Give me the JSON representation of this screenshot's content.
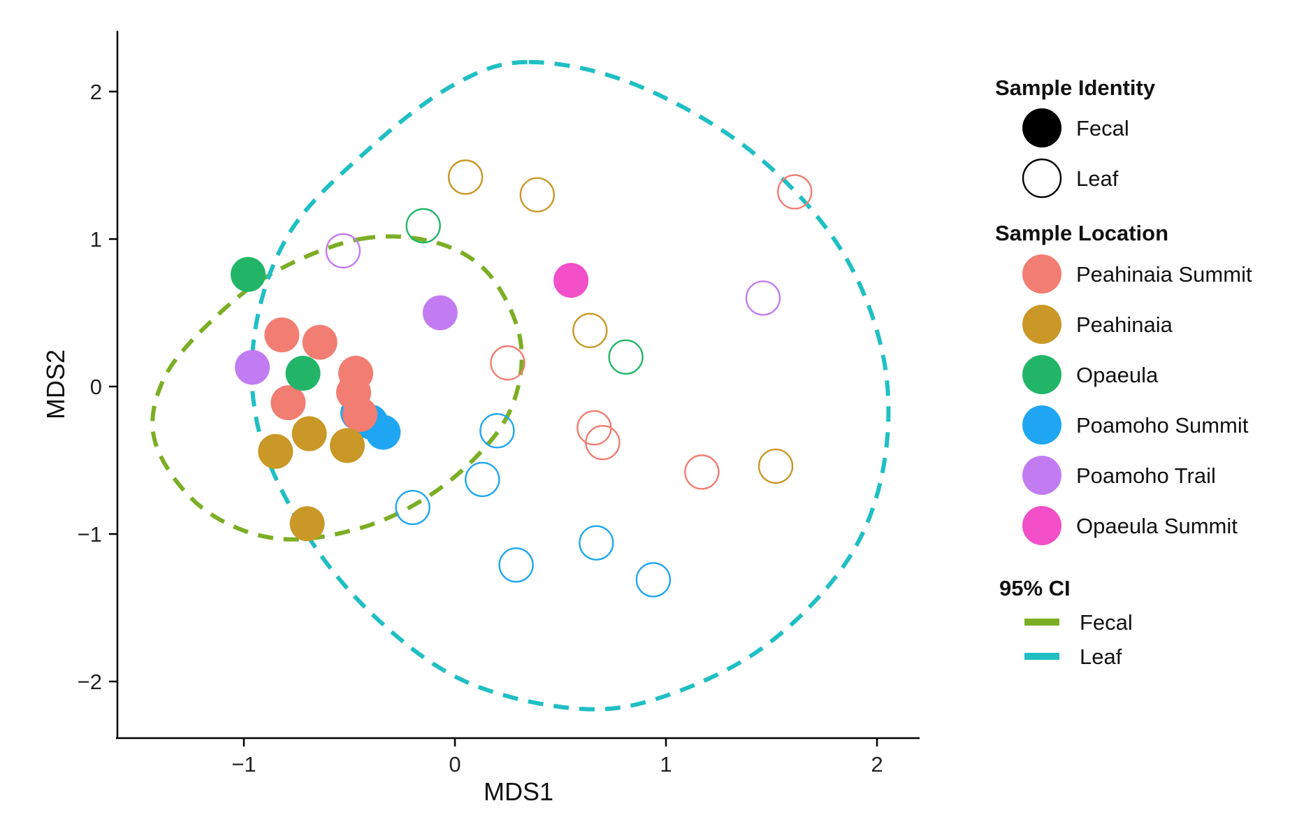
{
  "chart_data": {
    "type": "scatter",
    "xlabel": "MDS1",
    "ylabel": "MDS2",
    "xlim": [
      -1.6,
      2.2
    ],
    "ylim": [
      -2.4,
      2.4
    ],
    "x_ticks": [
      {
        "value": -1,
        "label": "−1"
      },
      {
        "value": 0,
        "label": "0"
      },
      {
        "value": 1,
        "label": "1"
      },
      {
        "value": 2,
        "label": "2"
      }
    ],
    "y_ticks": [
      {
        "value": 2,
        "label": "2"
      },
      {
        "value": 1,
        "label": "1"
      },
      {
        "value": 0,
        "label": "0"
      },
      {
        "value": -1,
        "label": "−1"
      },
      {
        "value": -2,
        "label": "−2"
      }
    ],
    "grid": false,
    "legend_placement": "right",
    "colors": {
      "Peahinaia Summit": "#F27D72",
      "Peahinaia": "#C99827",
      "Opaeula": "#22B568",
      "Poamoho Summit": "#1FA6F2",
      "Poamoho Trail": "#C27CF2",
      "Opaeula Summit": "#F24FC8",
      "ci_fecal": "#7CAE25",
      "ci_leaf": "#1FBFC4"
    },
    "points": [
      {
        "x": -0.98,
        "y": 0.76,
        "location": "Opaeula",
        "identity": "Fecal"
      },
      {
        "x": -0.96,
        "y": 0.13,
        "location": "Poamoho Trail",
        "identity": "Fecal"
      },
      {
        "x": -0.07,
        "y": 0.5,
        "location": "Poamoho Trail",
        "identity": "Fecal"
      },
      {
        "x": 0.55,
        "y": 0.72,
        "location": "Opaeula Summit",
        "identity": "Fecal"
      },
      {
        "x": -0.46,
        "y": -0.18,
        "location": "Poamoho Summit",
        "identity": "Fecal"
      },
      {
        "x": -0.4,
        "y": -0.24,
        "location": "Poamoho Summit",
        "identity": "Fecal"
      },
      {
        "x": -0.34,
        "y": -0.31,
        "location": "Poamoho Summit",
        "identity": "Fecal"
      },
      {
        "x": -0.82,
        "y": 0.35,
        "location": "Peahinaia Summit",
        "identity": "Fecal"
      },
      {
        "x": -0.64,
        "y": 0.3,
        "location": "Peahinaia Summit",
        "identity": "Fecal"
      },
      {
        "x": -0.47,
        "y": 0.09,
        "location": "Peahinaia Summit",
        "identity": "Fecal"
      },
      {
        "x": -0.48,
        "y": -0.04,
        "location": "Peahinaia Summit",
        "identity": "Fecal"
      },
      {
        "x": -0.45,
        "y": -0.19,
        "location": "Peahinaia Summit",
        "identity": "Fecal"
      },
      {
        "x": -0.79,
        "y": -0.11,
        "location": "Peahinaia Summit",
        "identity": "Fecal"
      },
      {
        "x": -0.72,
        "y": 0.09,
        "location": "Opaeula",
        "identity": "Fecal"
      },
      {
        "x": -0.69,
        "y": -0.32,
        "location": "Peahinaia",
        "identity": "Fecal"
      },
      {
        "x": -0.85,
        "y": -0.44,
        "location": "Peahinaia",
        "identity": "Fecal"
      },
      {
        "x": -0.51,
        "y": -0.4,
        "location": "Peahinaia",
        "identity": "Fecal"
      },
      {
        "x": -0.7,
        "y": -0.93,
        "location": "Peahinaia",
        "identity": "Fecal"
      },
      {
        "x": -0.53,
        "y": 0.92,
        "location": "Poamoho Trail",
        "identity": "Leaf"
      },
      {
        "x": -0.15,
        "y": 1.09,
        "location": "Opaeula",
        "identity": "Leaf"
      },
      {
        "x": 0.05,
        "y": 1.42,
        "location": "Peahinaia",
        "identity": "Leaf"
      },
      {
        "x": 0.39,
        "y": 1.3,
        "location": "Peahinaia",
        "identity": "Leaf"
      },
      {
        "x": 1.61,
        "y": 1.32,
        "location": "Peahinaia Summit",
        "identity": "Leaf"
      },
      {
        "x": 1.46,
        "y": 0.6,
        "location": "Poamoho Trail",
        "identity": "Leaf"
      },
      {
        "x": 0.64,
        "y": 0.38,
        "location": "Peahinaia",
        "identity": "Leaf"
      },
      {
        "x": 0.81,
        "y": 0.2,
        "location": "Opaeula",
        "identity": "Leaf"
      },
      {
        "x": 0.25,
        "y": 0.16,
        "location": "Peahinaia Summit",
        "identity": "Leaf"
      },
      {
        "x": 0.2,
        "y": -0.3,
        "location": "Poamoho Summit",
        "identity": "Leaf"
      },
      {
        "x": 0.66,
        "y": -0.28,
        "location": "Peahinaia Summit",
        "identity": "Leaf"
      },
      {
        "x": 0.7,
        "y": -0.38,
        "location": "Peahinaia Summit",
        "identity": "Leaf"
      },
      {
        "x": 1.17,
        "y": -0.58,
        "location": "Peahinaia Summit",
        "identity": "Leaf"
      },
      {
        "x": 1.52,
        "y": -0.54,
        "location": "Peahinaia",
        "identity": "Leaf"
      },
      {
        "x": 0.13,
        "y": -0.63,
        "location": "Poamoho Summit",
        "identity": "Leaf"
      },
      {
        "x": -0.2,
        "y": -0.82,
        "location": "Poamoho Summit",
        "identity": "Leaf"
      },
      {
        "x": 0.67,
        "y": -1.06,
        "location": "Poamoho Summit",
        "identity": "Leaf"
      },
      {
        "x": 0.29,
        "y": -1.21,
        "location": "Poamoho Summit",
        "identity": "Leaf"
      },
      {
        "x": 0.94,
        "y": -1.31,
        "location": "Poamoho Summit",
        "identity": "Leaf"
      }
    ],
    "ci_ellipses": [
      {
        "name": "Fecal",
        "color_key": "ci_fecal",
        "path": [
          [
            -0.45,
            1.0
          ],
          [
            -0.1,
            0.98
          ],
          [
            0.15,
            0.78
          ],
          [
            0.3,
            0.38
          ],
          [
            0.3,
            0.0
          ],
          [
            0.18,
            -0.35
          ],
          [
            -0.1,
            -0.72
          ],
          [
            -0.45,
            -0.96
          ],
          [
            -0.85,
            -1.03
          ],
          [
            -1.2,
            -0.82
          ],
          [
            -1.42,
            -0.38
          ],
          [
            -1.38,
            0.05
          ],
          [
            -1.15,
            0.45
          ],
          [
            -0.85,
            0.78
          ]
        ]
      },
      {
        "name": "Leaf",
        "color_key": "ci_leaf",
        "path": [
          [
            0.35,
            2.2
          ],
          [
            0.85,
            2.05
          ],
          [
            1.4,
            1.6
          ],
          [
            1.82,
            0.95
          ],
          [
            2.03,
            0.2
          ],
          [
            2.03,
            -0.55
          ],
          [
            1.85,
            -1.2
          ],
          [
            1.45,
            -1.78
          ],
          [
            0.95,
            -2.12
          ],
          [
            0.55,
            -2.18
          ],
          [
            0.05,
            -2.0
          ],
          [
            -0.35,
            -1.6
          ],
          [
            -0.68,
            -1.05
          ],
          [
            -0.92,
            -0.35
          ],
          [
            -0.95,
            0.35
          ],
          [
            -0.78,
            1.05
          ],
          [
            -0.4,
            1.62
          ],
          [
            0.0,
            2.05
          ]
        ]
      }
    ],
    "legend": {
      "identity_title": "Sample Identity",
      "identity_items": [
        "Fecal",
        "Leaf"
      ],
      "location_title": "Sample Location",
      "location_items": [
        "Peahinaia Summit",
        "Peahinaia",
        "Opaeula",
        "Poamoho Summit",
        "Poamoho Trail",
        "Opaeula Summit"
      ],
      "ci_title": "95% CI",
      "ci_items": [
        {
          "label": "Fecal",
          "color_key": "ci_fecal"
        },
        {
          "label": "Leaf",
          "color_key": "ci_leaf"
        }
      ]
    }
  }
}
